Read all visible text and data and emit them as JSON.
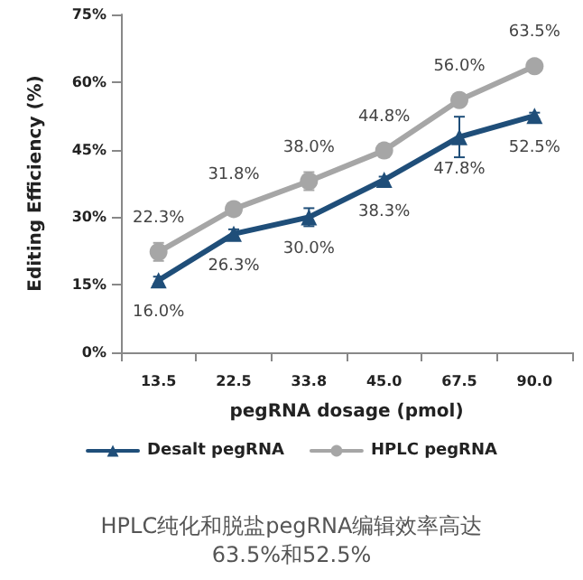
{
  "chart_data": {
    "type": "line",
    "xlabel": "pegRNA dosage (pmol)",
    "ylabel": "Editing Efficiency (%)",
    "categories": [
      "13.5",
      "22.5",
      "33.8",
      "45.0",
      "67.5",
      "90.0"
    ],
    "series": [
      {
        "name": "Desalt pegRNA",
        "color": "#1f4e79",
        "marker": "triangle",
        "values": [
          16.0,
          26.3,
          30.0,
          38.3,
          47.8,
          52.5
        ],
        "errors": [
          0.8,
          1.0,
          2.0,
          0.7,
          4.5,
          0.7
        ],
        "value_labels": [
          "16.0%",
          "26.3%",
          "30.0%",
          "38.3%",
          "47.8%",
          "52.5%"
        ]
      },
      {
        "name": "HPLC pegRNA",
        "color": "#a6a6a6",
        "marker": "circle",
        "values": [
          22.3,
          31.8,
          38.0,
          44.8,
          56.0,
          63.5
        ],
        "errors": [
          2.0,
          0.8,
          2.0,
          1.5,
          1.0,
          0.5
        ],
        "value_labels": [
          "22.3%",
          "31.8%",
          "38.0%",
          "44.8%",
          "56.0%",
          "63.5%"
        ]
      }
    ],
    "ylim": [
      0,
      75
    ],
    "yticks": [
      {
        "value": 0,
        "label": "0%"
      },
      {
        "value": 15,
        "label": "15%"
      },
      {
        "value": 30,
        "label": "30%"
      },
      {
        "value": 45,
        "label": "45%"
      },
      {
        "value": 60,
        "label": "60%"
      },
      {
        "value": 75,
        "label": "75%"
      }
    ],
    "grid": false,
    "legend": "bottom",
    "line_style": "solid",
    "annotations": [
      "HPLC纯化和脱盐pegRNA编辑效率高达\n63.5%和52.5%"
    ]
  }
}
